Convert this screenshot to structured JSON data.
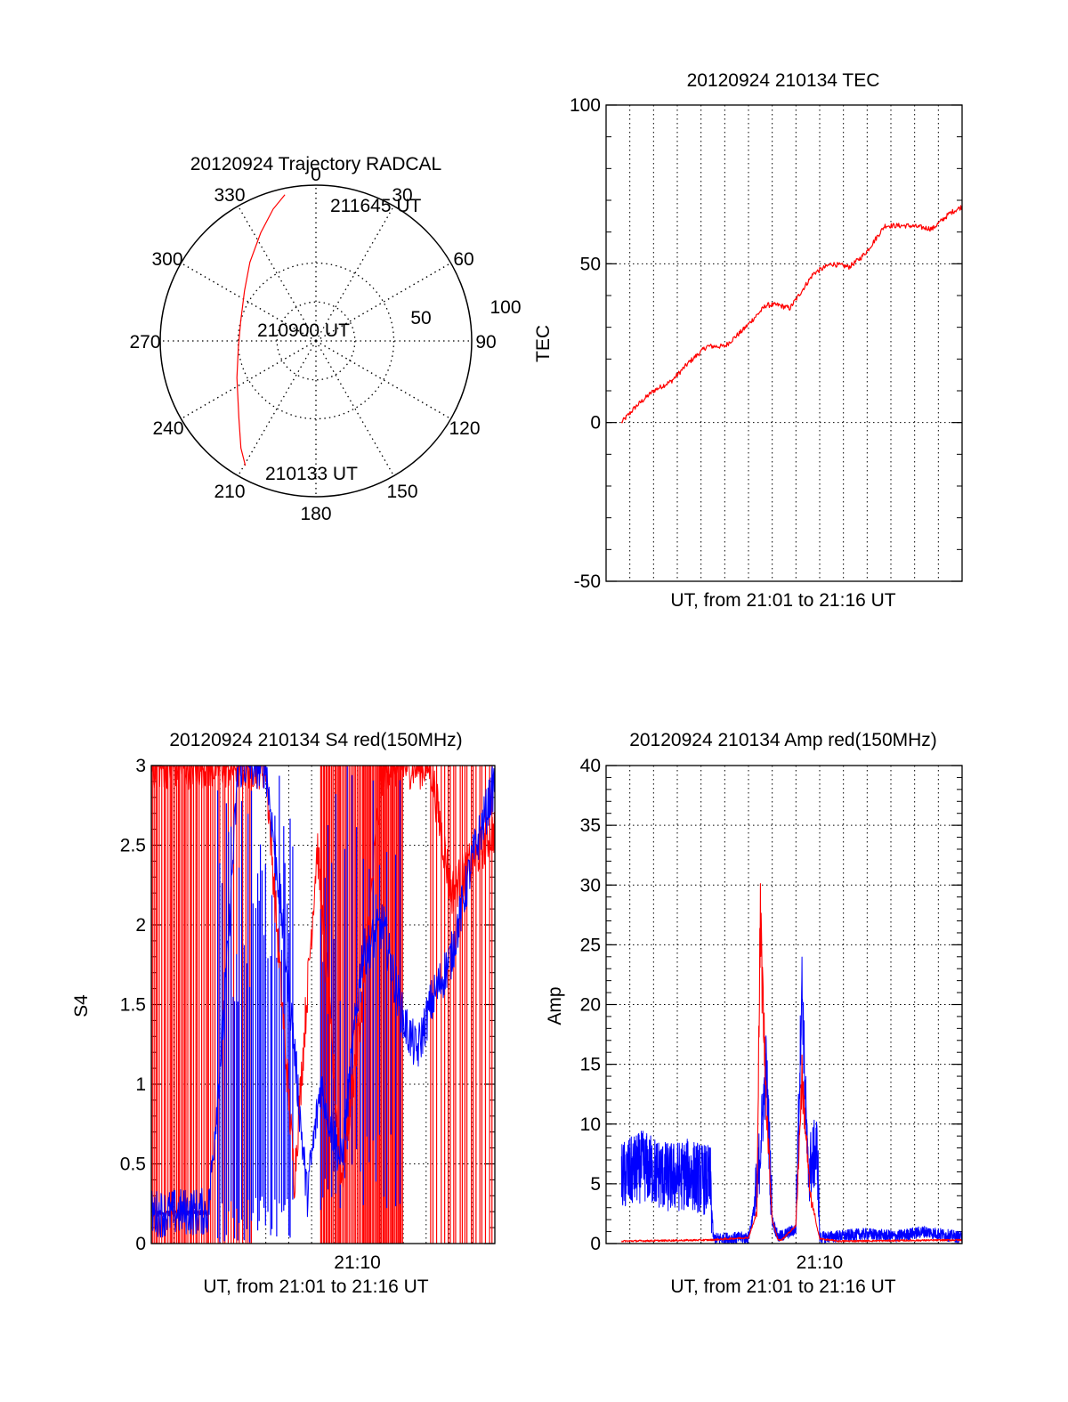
{
  "colors": {
    "red": "#ff0000",
    "blue": "#0000ff",
    "axis": "#000000",
    "grid": "#000000"
  },
  "chart_data": [
    {
      "type": "polar",
      "title": "20120924 Trajectory RADCAL",
      "angle_labels": [
        "0",
        "30",
        "60",
        "90",
        "120",
        "150",
        "180",
        "210",
        "240",
        "270",
        "300",
        "330"
      ],
      "radial_labels": [
        "50",
        "100"
      ],
      "radial_range": [
        0,
        100
      ],
      "grid": true,
      "series": [
        {
          "color": "#ff0000",
          "points": [
            [
              209.5,
              92
            ],
            [
              215,
              84
            ],
            [
              225,
              70
            ],
            [
              245,
              56
            ],
            [
              265,
              50
            ],
            [
              285,
              50
            ],
            [
              305,
              56
            ],
            [
              320,
              66
            ],
            [
              333,
              78
            ],
            [
              342,
              89
            ],
            [
              348,
              96
            ]
          ]
        }
      ],
      "annotations": [
        {
          "text": "211645 UT",
          "at": [
            348,
            96
          ]
        },
        {
          "text": "210900 UT",
          "at": [
            0,
            0
          ]
        },
        {
          "text": "210133 UT",
          "at": [
            209.5,
            92
          ]
        }
      ]
    },
    {
      "type": "line",
      "title": "20120924 210134 TEC",
      "xlabel": "UT, from 21:01 to 21:16 UT",
      "ylabel": "TEC",
      "xlim": [
        21.0167,
        21.2667
      ],
      "ylim": [
        -50,
        100
      ],
      "yticks": [
        "100",
        "50",
        "0",
        "-50"
      ],
      "grid": true,
      "series": [
        {
          "color": "#ff0000",
          "x": [
            21.0275,
            21.0375,
            21.05,
            21.0625,
            21.075,
            21.0875,
            21.1,
            21.1125,
            21.1167,
            21.1292,
            21.1375,
            21.1458,
            21.1625,
            21.175,
            21.1875,
            21.1958,
            21.2,
            21.2125,
            21.2292,
            21.2458,
            21.2583,
            21.2667
          ],
          "y": [
            0,
            5,
            10,
            13,
            19,
            24,
            24,
            29,
            31,
            37,
            37,
            36,
            47,
            50,
            49,
            52,
            54,
            62,
            62,
            61,
            66,
            68
          ]
        }
      ]
    },
    {
      "type": "line",
      "title": "20120924 210134 S4 red(150MHz)",
      "xlabel": "UT, from 21:01 to 21:16 UT",
      "ylabel": "S4",
      "xlim": [
        21.0167,
        21.2667
      ],
      "ylim": [
        0,
        3
      ],
      "yticks": [
        "3",
        "2.5",
        "2",
        "1.5",
        "1",
        "0.5",
        "0"
      ],
      "xticks": [
        "21:10"
      ],
      "grid": true,
      "series": [
        {
          "color": "#ff0000",
          "x": [
            21.0167,
            21.0417,
            21.06,
            21.08,
            21.1,
            21.1208,
            21.1375,
            21.155,
            21.17,
            21.185,
            21.2,
            21.22,
            21.235,
            21.25,
            21.2667
          ],
          "y": [
            3,
            3,
            3,
            3,
            3,
            0.4,
            2.5,
            0.4,
            1.5,
            3,
            3,
            3,
            2.2,
            2.4,
            2.6
          ]
        },
        {
          "color": "#0000ff",
          "x": [
            21.0167,
            21.0292,
            21.0417,
            21.0583,
            21.07,
            21.08,
            21.09,
            21.1,
            21.11,
            21.12,
            21.13,
            21.14,
            21.155,
            21.17,
            21.185,
            21.2,
            21.21,
            21.22,
            21.235,
            21.25,
            21.2667
          ],
          "y": [
            0.19,
            0.19,
            0.2,
            0.2,
            1.5,
            3,
            3,
            3,
            2.2,
            1.3,
            0.3,
            1.0,
            0.5,
            1.8,
            2.0,
            1.4,
            1.2,
            1.5,
            1.8,
            2.4,
            2.9
          ]
        }
      ]
    },
    {
      "type": "line",
      "title": "20120924 210134 Amp red(150MHz)",
      "xlabel": "UT, from 21:01 to 21:16 UT",
      "ylabel": "Amp",
      "xlim": [
        21.0167,
        21.2667
      ],
      "ylim": [
        0,
        40
      ],
      "yticks": [
        "40",
        "35",
        "30",
        "25",
        "20",
        "15",
        "10",
        "5",
        "0"
      ],
      "xticks": [
        "21:10"
      ],
      "grid": true,
      "series": [
        {
          "color": "#ff0000",
          "x": [
            21.0275,
            21.09,
            21.1167,
            21.1225,
            21.125,
            21.1292,
            21.1333,
            21.1375,
            21.14,
            21.15,
            21.1542,
            21.16,
            21.1667,
            21.18,
            21.2667
          ],
          "y": [
            0.2,
            0.3,
            0.5,
            2.5,
            27,
            12,
            2,
            0.3,
            0.3,
            1.5,
            14,
            4,
            0.4,
            0.2,
            0.3
          ]
        },
        {
          "color": "#0000ff",
          "x": [
            21.0275,
            21.0425,
            21.06,
            21.075,
            21.09,
            21.092,
            21.1167,
            21.1225,
            21.1292,
            21.1333,
            21.1375,
            21.15,
            21.1542,
            21.1583,
            21.165,
            21.1667,
            21.2,
            21.22,
            21.24,
            21.2667
          ],
          "y": [
            5.5,
            6.5,
            5.5,
            5.8,
            5.2,
            0.4,
            0.5,
            4,
            15,
            2,
            0.5,
            1.2,
            22,
            6,
            8,
            0.5,
            0.8,
            0.6,
            1,
            0.5
          ]
        }
      ]
    }
  ]
}
